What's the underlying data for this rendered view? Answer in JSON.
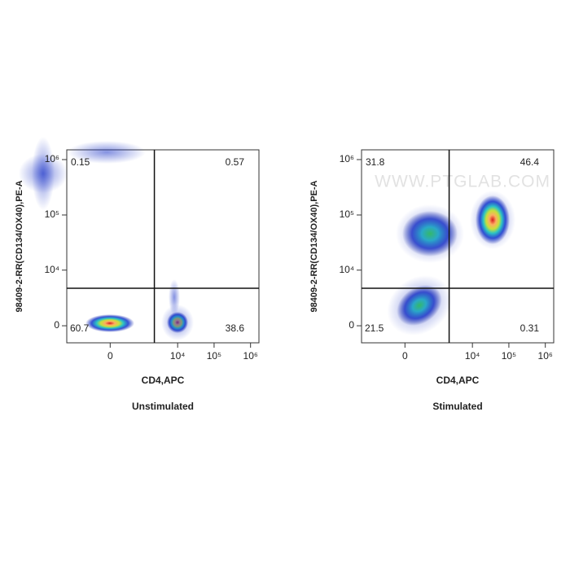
{
  "chart_data": [
    {
      "type": "scatter",
      "subtitle": "Unstimulated",
      "x_label": "CD4,APC",
      "y_label": "98409-2-RR(CD134/OX40),PE-A",
      "xscale": "biexponential",
      "yscale": "biexponential",
      "xlim": [
        -2180,
        1700000
      ],
      "ylim": [
        -1540,
        1500000
      ],
      "xticks": [
        0,
        {
          "value": 10000,
          "label": "10⁴"
        },
        {
          "value": 100000,
          "label": "10⁵"
        },
        {
          "value": 1000000,
          "label": "10⁶"
        }
      ],
      "yticks": [
        0,
        {
          "value": 10000,
          "label": "10⁴"
        },
        {
          "value": 100000,
          "label": "10⁵"
        },
        {
          "value": 1000000,
          "label": "10⁶"
        }
      ],
      "gates": {
        "x": 2290,
        "y": 4540
      },
      "quadrants": {
        "upper_left": 0.15,
        "upper_right": 0.57,
        "lower_left": 60.7,
        "lower_right": 38.6
      }
    },
    {
      "type": "scatter",
      "subtitle": "Stimulated",
      "x_label": "CD4,APC",
      "y_label": "98409-2-RR(CD134/OX40),PE-A",
      "xscale": "biexponential",
      "yscale": "biexponential",
      "xlim": [
        -2180,
        1700000
      ],
      "ylim": [
        -1540,
        1500000
      ],
      "xticks": [
        0,
        {
          "value": 10000,
          "label": "10⁴"
        },
        {
          "value": 100000,
          "label": "10⁵"
        },
        {
          "value": 1000000,
          "label": "10⁶"
        }
      ],
      "yticks": [
        0,
        {
          "value": 10000,
          "label": "10⁴"
        },
        {
          "value": 100000,
          "label": "10⁵"
        },
        {
          "value": 1000000,
          "label": "10⁶"
        }
      ],
      "gates": {
        "x": 2290,
        "y": 4540
      },
      "quadrants": {
        "upper_left": 31.8,
        "upper_right": 46.4,
        "lower_left": 21.5,
        "lower_right": 0.31
      },
      "watermark": "WWW.PTGLAB.COM"
    }
  ]
}
